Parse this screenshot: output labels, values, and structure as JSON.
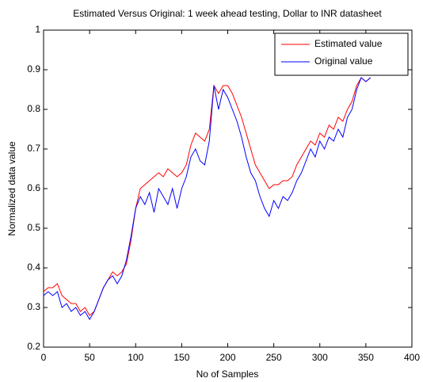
{
  "chart_data": {
    "type": "line",
    "title": "Estimated Versus Original: 1 week ahead testing, Dollar to INR datasheet",
    "x_label": "No of Samples",
    "y_label": "Normalized data value",
    "x": [
      0,
      5,
      10,
      15,
      20,
      25,
      30,
      35,
      40,
      45,
      50,
      55,
      60,
      65,
      70,
      75,
      80,
      85,
      90,
      95,
      100,
      105,
      110,
      115,
      120,
      125,
      130,
      135,
      140,
      145,
      150,
      155,
      160,
      165,
      170,
      175,
      180,
      185,
      190,
      195,
      200,
      205,
      210,
      215,
      220,
      225,
      230,
      235,
      240,
      245,
      250,
      255,
      260,
      265,
      270,
      275,
      280,
      285,
      290,
      295,
      300,
      305,
      310,
      315,
      320,
      325,
      330,
      335,
      340,
      345,
      350,
      355
    ],
    "series": [
      {
        "name": "Estimated value",
        "color": "#ff0000",
        "values": [
          0.34,
          0.35,
          0.35,
          0.36,
          0.33,
          0.32,
          0.31,
          0.31,
          0.29,
          0.3,
          0.28,
          0.29,
          0.32,
          0.35,
          0.37,
          0.39,
          0.38,
          0.39,
          0.41,
          0.47,
          0.55,
          0.6,
          0.61,
          0.62,
          0.63,
          0.64,
          0.63,
          0.65,
          0.64,
          0.63,
          0.64,
          0.66,
          0.71,
          0.74,
          0.73,
          0.72,
          0.75,
          0.86,
          0.84,
          0.86,
          0.86,
          0.84,
          0.81,
          0.78,
          0.74,
          0.7,
          0.66,
          0.64,
          0.62,
          0.6,
          0.61,
          0.61,
          0.62,
          0.62,
          0.63,
          0.66,
          0.68,
          0.7,
          0.72,
          0.71,
          0.74,
          0.73,
          0.76,
          0.75,
          0.78,
          0.77,
          0.8,
          0.82,
          0.86,
          0.88,
          0.87,
          0.88
        ]
      },
      {
        "name": "Original value",
        "color": "#0000ff",
        "values": [
          0.33,
          0.34,
          0.33,
          0.34,
          0.3,
          0.31,
          0.29,
          0.3,
          0.28,
          0.29,
          0.27,
          0.29,
          0.32,
          0.35,
          0.37,
          0.38,
          0.36,
          0.38,
          0.42,
          0.48,
          0.55,
          0.58,
          0.56,
          0.59,
          0.54,
          0.6,
          0.58,
          0.56,
          0.6,
          0.55,
          0.6,
          0.63,
          0.68,
          0.7,
          0.67,
          0.66,
          0.72,
          0.86,
          0.8,
          0.85,
          0.83,
          0.8,
          0.77,
          0.73,
          0.68,
          0.64,
          0.62,
          0.58,
          0.55,
          0.53,
          0.57,
          0.55,
          0.58,
          0.57,
          0.59,
          0.62,
          0.64,
          0.67,
          0.7,
          0.68,
          0.72,
          0.7,
          0.73,
          0.72,
          0.75,
          0.73,
          0.78,
          0.8,
          0.85,
          0.88,
          0.87,
          0.88
        ]
      }
    ],
    "xlim": [
      0,
      400
    ],
    "xticks": [
      0,
      50,
      100,
      150,
      200,
      250,
      300,
      350,
      400
    ],
    "ylim": [
      0.2,
      1
    ],
    "yticks": [
      0.2,
      0.3,
      0.4,
      0.5,
      0.6,
      0.7,
      0.8,
      0.9,
      1
    ],
    "legend": "upper right"
  }
}
